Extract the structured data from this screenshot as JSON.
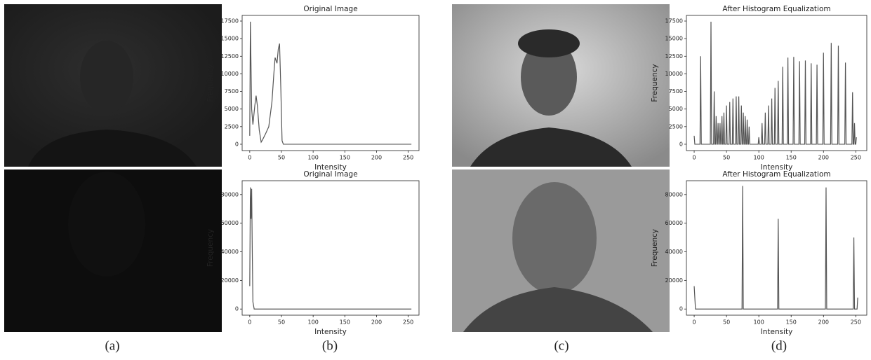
{
  "captions": [
    "(a)",
    "(b)",
    "(c)",
    "(d)"
  ],
  "chart_data": [
    {
      "type": "line",
      "title": "Original Image",
      "x_label": "Intensity",
      "y_label": "Frequency",
      "xlim": [
        -12,
        267
      ],
      "ylim": [
        -900,
        18300
      ],
      "xticks": [
        0,
        50,
        100,
        150,
        200,
        250
      ],
      "yticks": [
        0,
        2500,
        5000,
        7500,
        10000,
        12500,
        15000,
        17500
      ],
      "series": [
        {
          "color": "#555555",
          "x": [
            0,
            1,
            3,
            5,
            8,
            10,
            12,
            15,
            18,
            20,
            25,
            30,
            35,
            38,
            40,
            43,
            45,
            47,
            49,
            51,
            53,
            255
          ],
          "values": [
            1200,
            17400,
            5000,
            2800,
            5500,
            6900,
            5500,
            2000,
            300,
            600,
            1500,
            2500,
            6000,
            10000,
            12300,
            11500,
            13500,
            14300,
            8000,
            500,
            0,
            0
          ]
        }
      ]
    },
    {
      "type": "line",
      "title": "After Histogram Equalizatiom",
      "x_label": "Intensity",
      "y_label": "Frequency",
      "xlim": [
        -12,
        267
      ],
      "ylim": [
        -900,
        18300
      ],
      "xticks": [
        0,
        50,
        100,
        150,
        200,
        250
      ],
      "yticks": [
        0,
        2500,
        5000,
        7500,
        10000,
        12500,
        15000,
        17500
      ],
      "series": [
        {
          "color": "#555555",
          "x": [
            0,
            1,
            9,
            10,
            11,
            25,
            26,
            27,
            30,
            31,
            32,
            33,
            34,
            35,
            36,
            37,
            38,
            39,
            40,
            41,
            42,
            43,
            44,
            45,
            46,
            47,
            49,
            50,
            51,
            54,
            55,
            56,
            59,
            60,
            61,
            64,
            65,
            66,
            68,
            69,
            70,
            72,
            73,
            74,
            75,
            76,
            77,
            78,
            79,
            80,
            81,
            82,
            83,
            84,
            85,
            86,
            99,
            100,
            101,
            104,
            105,
            106,
            109,
            110,
            111,
            114,
            115,
            116,
            119,
            120,
            121,
            124,
            125,
            126,
            129,
            130,
            131,
            136,
            137,
            138,
            144,
            145,
            146,
            153,
            154,
            155,
            162,
            163,
            164,
            171,
            172,
            173,
            180,
            181,
            182,
            189,
            190,
            191,
            199,
            200,
            201,
            211,
            212,
            213,
            222,
            223,
            224,
            233,
            234,
            235,
            244,
            245,
            246,
            247,
            248,
            249,
            250,
            251
          ],
          "values": [
            1200,
            0,
            0,
            12500,
            0,
            0,
            17400,
            0,
            0,
            7500,
            0,
            0,
            4000,
            0,
            0,
            3000,
            0,
            0,
            3000,
            0,
            0,
            4000,
            0,
            0,
            4500,
            0,
            0,
            5500,
            0,
            0,
            6000,
            0,
            0,
            6500,
            0,
            0,
            6800,
            0,
            0,
            6800,
            0,
            0,
            5500,
            0,
            0,
            4500,
            0,
            0,
            4000,
            0,
            0,
            3500,
            0,
            0,
            2500,
            0,
            0,
            1000,
            0,
            0,
            3000,
            0,
            0,
            4500,
            0,
            0,
            5500,
            0,
            0,
            6500,
            0,
            0,
            8000,
            0,
            0,
            9000,
            0,
            0,
            11000,
            0,
            0,
            12300,
            0,
            0,
            12400,
            0,
            0,
            11800,
            0,
            0,
            11900,
            0,
            0,
            11500,
            0,
            0,
            11300,
            0,
            0,
            13000,
            0,
            0,
            14400,
            0,
            0,
            14000,
            0,
            0,
            11600,
            0,
            0,
            7400,
            0,
            0,
            3000,
            0,
            0,
            1000
          ]
        }
      ]
    },
    {
      "type": "line",
      "title": "Original Image",
      "x_label": "Intensity",
      "y_label": "Frequency",
      "xlim": [
        -12,
        267
      ],
      "ylim": [
        -4300,
        89700
      ],
      "xticks": [
        0,
        50,
        100,
        150,
        200,
        250
      ],
      "yticks": [
        0,
        20000,
        40000,
        60000,
        80000
      ],
      "series": [
        {
          "color": "#555555",
          "x": [
            0,
            1,
            2,
            3,
            4,
            5,
            7,
            255
          ],
          "values": [
            16000,
            85000,
            63000,
            84000,
            40000,
            5000,
            0,
            0
          ]
        }
      ]
    },
    {
      "type": "line",
      "title": "After Histogram Equalizatiom",
      "x_label": "Intensity",
      "y_label": "Frequency",
      "xlim": [
        -12,
        267
      ],
      "ylim": [
        -4300,
        89700
      ],
      "xticks": [
        0,
        50,
        100,
        150,
        200,
        250
      ],
      "yticks": [
        0,
        20000,
        40000,
        60000,
        80000
      ],
      "series": [
        {
          "color": "#555555",
          "x": [
            0,
            2,
            74,
            75,
            76,
            129,
            130,
            131,
            203,
            204,
            205,
            246,
            247,
            248,
            252,
            253
          ],
          "values": [
            16000,
            0,
            0,
            86000,
            0,
            0,
            63000,
            0,
            0,
            85000,
            0,
            0,
            50000,
            0,
            0,
            8000
          ]
        }
      ]
    }
  ]
}
